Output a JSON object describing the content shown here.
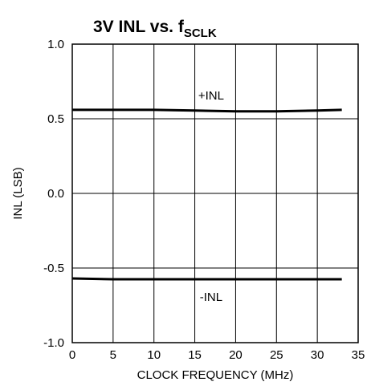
{
  "chart_data": {
    "type": "line",
    "title_main": "3V INL vs. f",
    "title_sub": "SCLK",
    "xlabel": "CLOCK FREQUENCY (MHz)",
    "ylabel": "INL (LSB)",
    "xlim": [
      0,
      35
    ],
    "ylim": [
      -1.0,
      1.0
    ],
    "x_ticks": [
      0,
      5,
      10,
      15,
      20,
      25,
      30,
      35
    ],
    "x_tick_labels": [
      "0",
      "5",
      "10",
      "15",
      "20",
      "25",
      "30",
      "35"
    ],
    "y_ticks": [
      -1.0,
      -0.5,
      0.0,
      0.5,
      1.0
    ],
    "y_tick_labels": [
      "-1.0",
      "-0.5",
      "0.0",
      "0.5",
      "1.0"
    ],
    "grid": true,
    "series": [
      {
        "label": "+INL",
        "label_at": [
          17,
          0.63
        ],
        "x": [
          0,
          5,
          10,
          15,
          20,
          25,
          30,
          33
        ],
        "y": [
          0.56,
          0.56,
          0.56,
          0.555,
          0.55,
          0.55,
          0.555,
          0.56
        ]
      },
      {
        "label": "-INL",
        "label_at": [
          17,
          -0.72
        ],
        "x": [
          0,
          5,
          10,
          15,
          20,
          25,
          30,
          33
        ],
        "y": [
          -0.57,
          -0.575,
          -0.575,
          -0.575,
          -0.575,
          -0.575,
          -0.575,
          -0.575
        ]
      }
    ]
  }
}
